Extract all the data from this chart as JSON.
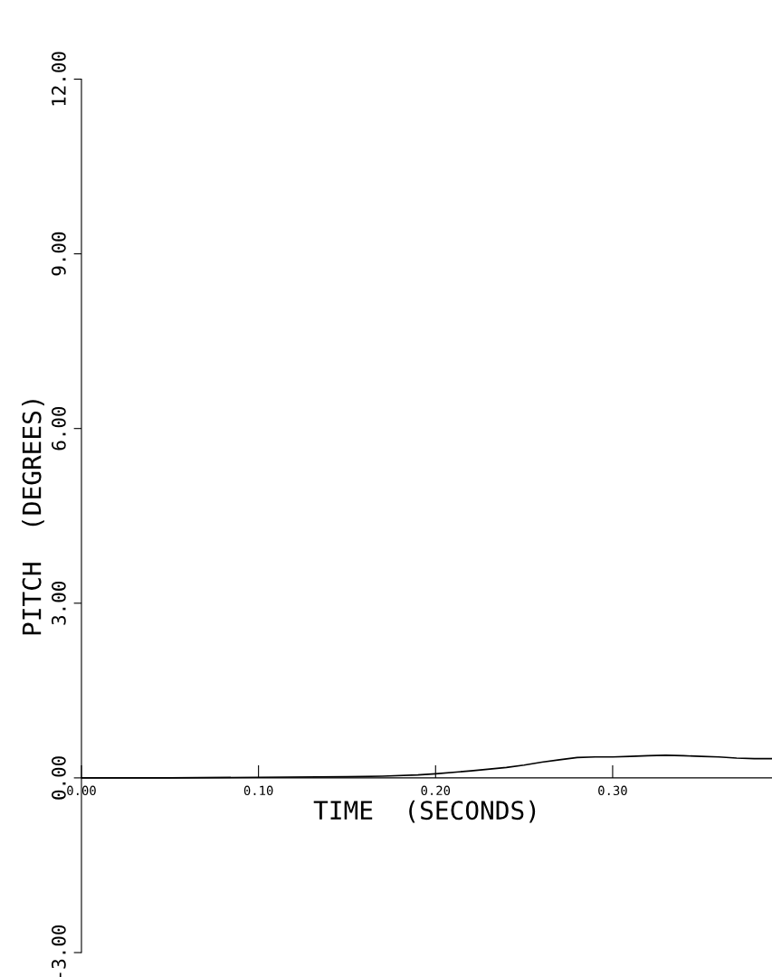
{
  "chart_data": {
    "type": "line",
    "xlabel": "TIME  (SECONDS)",
    "ylabel": "PITCH  (DEGREES)",
    "x": [
      0,
      0.05,
      0.1,
      0.15,
      0.17,
      0.19,
      0.2,
      0.22,
      0.24,
      0.25,
      0.26,
      0.27,
      0.28,
      0.29,
      0.3,
      0.31,
      0.32,
      0.33,
      0.34,
      0.35,
      0.36,
      0.37,
      0.38,
      0.39
    ],
    "series": [
      {
        "color": "#000000",
        "values": [
          0,
          0.0,
          0.01,
          0.02,
          0.03,
          0.05,
          0.07,
          0.12,
          0.18,
          0.22,
          0.27,
          0.31,
          0.35,
          0.36,
          0.36,
          0.37,
          0.38,
          0.39,
          0.38,
          0.37,
          0.36,
          0.34,
          0.33,
          0.33
        ]
      }
    ],
    "xlim": [
      0,
      0.39
    ],
    "ylim": [
      -3,
      12
    ],
    "xticks": [
      {
        "value": 0,
        "label": "0.00"
      },
      {
        "value": 0.1,
        "label": "0.10"
      },
      {
        "value": 0.2,
        "label": "0.20"
      },
      {
        "value": 0.3,
        "label": "0.30"
      }
    ],
    "yticks": [
      {
        "value": -3,
        "label": "-3.00"
      },
      {
        "value": 0,
        "label": "0.00"
      },
      {
        "value": 3,
        "label": "3.00"
      },
      {
        "value": 6,
        "label": "6.00"
      },
      {
        "value": 9,
        "label": "9.00"
      },
      {
        "value": 12,
        "label": "12.00"
      }
    ],
    "grid": false,
    "legend": false
  }
}
